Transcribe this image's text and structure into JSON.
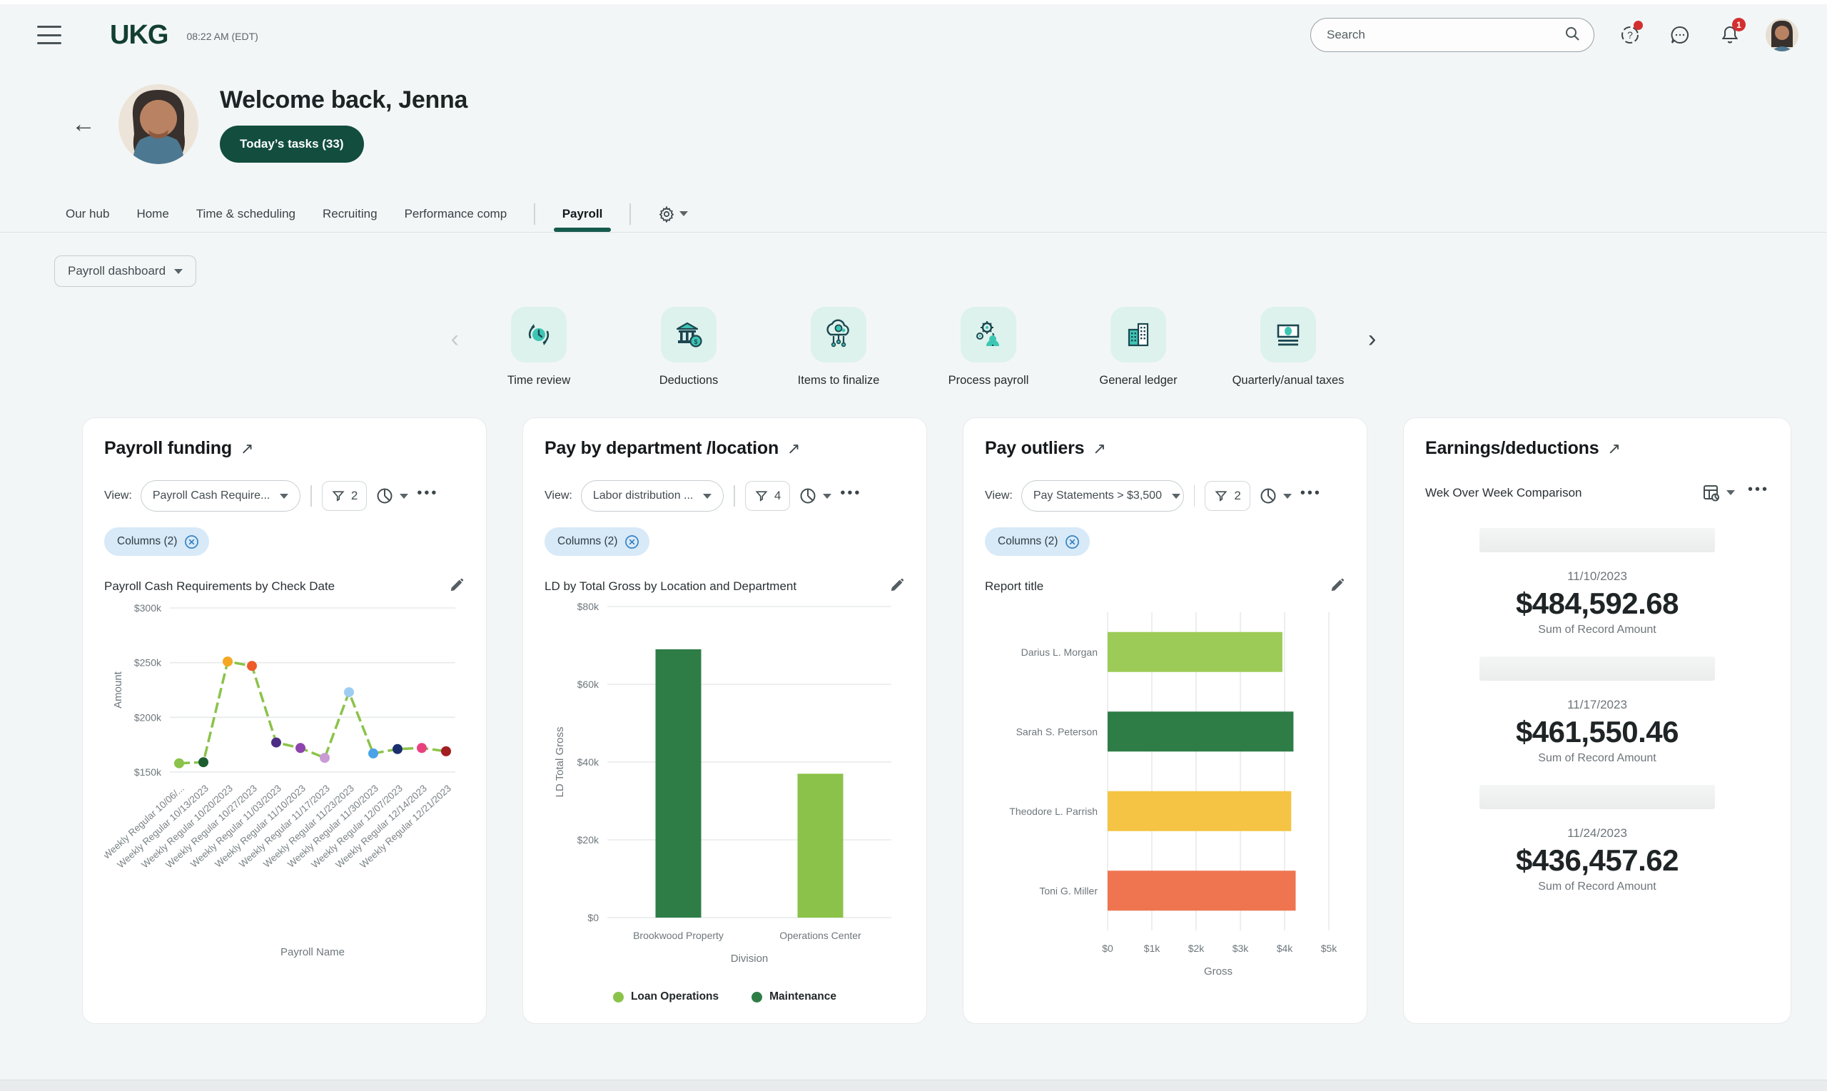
{
  "topbar": {
    "time": "08:22 AM (EDT)",
    "brand": "UKG",
    "search_placeholder": "Search",
    "notification_count": "1"
  },
  "welcome": {
    "title": "Welcome back, Jenna",
    "tasks_button": "Today’s tasks (33)"
  },
  "tabs": {
    "items": [
      {
        "label": "Our hub"
      },
      {
        "label": "Home"
      },
      {
        "label": "Time & scheduling"
      },
      {
        "label": "Recruiting"
      },
      {
        "label": "Performance comp"
      },
      {
        "label": "Payroll"
      }
    ],
    "active": "Payroll"
  },
  "dashboard_selector": {
    "label": "Payroll dashboard"
  },
  "carousel": {
    "items": [
      {
        "label": "Time review",
        "icon": "time-review-icon"
      },
      {
        "label": "Deductions",
        "icon": "bank-dollar-icon"
      },
      {
        "label": "Items to finalize",
        "icon": "cloud-gear-icon"
      },
      {
        "label": "Process payroll",
        "icon": "gears-person-icon"
      },
      {
        "label": "General ledger",
        "icon": "buildings-icon"
      },
      {
        "label": "Quarterly/anual taxes",
        "icon": "money-statement-icon"
      }
    ]
  },
  "cards": {
    "payroll_funding": {
      "title": "Payroll  funding",
      "view_label": "View:",
      "view_value": "Payroll Cash Require...",
      "filter_count": "2",
      "columns_chip": "Columns (2)",
      "report_title": "Payroll Cash Requirements by Check Date"
    },
    "pay_by_department": {
      "title": "Pay by department /location",
      "view_label": "View:",
      "view_value": "Labor distribution ...",
      "filter_count": "4",
      "columns_chip": "Columns (2)",
      "report_title": "LD by Total Gross by Location and Department"
    },
    "pay_outliers": {
      "title": "Pay outliers",
      "view_label": "View:",
      "view_value": "Pay Statements > $3,500",
      "filter_count": "2",
      "columns_chip": "Columns (2)",
      "report_title": "Report title"
    },
    "earnings_deductions": {
      "title": "Earnings/deductions",
      "subtitle": "Wek Over Week Comparison"
    }
  },
  "icons": {
    "hamburger": "menu",
    "search": "magnifier",
    "help": "question-circle",
    "chat": "speech-bubble",
    "bell": "notifications",
    "gear": "⚙",
    "external": "↗",
    "back": "←",
    "dots": "•••",
    "chevron_left": "‹",
    "chevron_right": "›"
  },
  "chart_data": [
    {
      "id": "payroll_funding",
      "type": "line",
      "title": "Payroll Cash Requirements by Check Date",
      "xlabel": "Payroll Name",
      "ylabel": "Amount",
      "ylim": [
        150000,
        300000
      ],
      "yticks": [
        {
          "v": 150000,
          "label": "$150k"
        },
        {
          "v": 200000,
          "label": "$200k"
        },
        {
          "v": 250000,
          "label": "$250k"
        },
        {
          "v": 300000,
          "label": "$300k"
        }
      ],
      "grid": true,
      "line_color": "#8bc34a",
      "line_dashed": true,
      "categories": [
        "Weekly Regular 10/06/...",
        "Weekly Regular 10/13/2023",
        "Weekly Regular 10/20/2023",
        "Weekly Regular 10/27/2023",
        "Weekly Regular 11/03/2023",
        "Weekly Regular 11/10/2023",
        "Weekly Regular 11/17/2023",
        "Weekly Regular 11/23/2023",
        "Weekly Regular 11/30/2023",
        "Weekly Regular 12/07/2023",
        "Weekly Regular 12/14/2023",
        "Weekly Regular 12/21/2023"
      ],
      "values": [
        158000,
        159000,
        251000,
        247000,
        177000,
        172000,
        163000,
        223000,
        167000,
        171000,
        172000,
        169000
      ],
      "point_colors": [
        "#8bc34a",
        "#1d5e30",
        "#f5a623",
        "#ef5a2a",
        "#4b2e83",
        "#8e44ad",
        "#c99bd4",
        "#9ecdf2",
        "#4aa3e8",
        "#1b2f6e",
        "#e8417f",
        "#a31e21"
      ]
    },
    {
      "id": "pay_by_department",
      "type": "bar",
      "title": "LD by Total Gross by Location and Department",
      "xlabel": "Division",
      "ylabel": "LD Total Gross",
      "ylim": [
        0,
        80000
      ],
      "yticks": [
        {
          "v": 0,
          "label": "$0"
        },
        {
          "v": 20000,
          "label": "$20k"
        },
        {
          "v": 40000,
          "label": "$40k"
        },
        {
          "v": 60000,
          "label": "$60k"
        },
        {
          "v": 80000,
          "label": "$80k"
        }
      ],
      "grid": true,
      "bars": [
        {
          "category": "Brookwood Property",
          "series": "Maintenance",
          "value": 69000,
          "color": "#2e7d46"
        },
        {
          "category": "Operations Center",
          "series": "Loan Operations",
          "value": 37000,
          "color": "#8bc34a"
        }
      ],
      "legend": [
        {
          "label": "Loan Operations",
          "color": "#8bc34a"
        },
        {
          "label": "Maintenance",
          "color": "#2e7d46"
        }
      ],
      "legend_position": "bottom"
    },
    {
      "id": "pay_outliers",
      "type": "horizontal-bar",
      "title": "Report title",
      "xlabel": "Gross",
      "xlim": [
        0,
        5000
      ],
      "xticks": [
        {
          "v": 0,
          "label": "$0"
        },
        {
          "v": 1000,
          "label": "$1k"
        },
        {
          "v": 2000,
          "label": "$2k"
        },
        {
          "v": 3000,
          "label": "$3k"
        },
        {
          "v": 4000,
          "label": "$4k"
        },
        {
          "v": 5000,
          "label": "$5k"
        }
      ],
      "grid": true,
      "bars": [
        {
          "category": "Darius L. Morgan",
          "value": 3950,
          "color": "#9ccb57"
        },
        {
          "category": "Sarah S. Peterson",
          "value": 4200,
          "color": "#2e7d46"
        },
        {
          "category": "Theodore L. Parrish",
          "value": 4150,
          "color": "#f5c444"
        },
        {
          "category": "Toni G. Miller",
          "value": 4250,
          "color": "#ef7450"
        }
      ]
    },
    {
      "id": "earnings_deductions",
      "type": "table",
      "title": "Wek Over Week Comparison",
      "rows": [
        {
          "date": "11/10/2023",
          "amount": "$484,592.68",
          "caption": "Sum of Record Amount"
        },
        {
          "date": "11/17/2023",
          "amount": "$461,550.46",
          "caption": "Sum of Record Amount"
        },
        {
          "date": "11/24/2023",
          "amount": "$436,457.62",
          "caption": "Sum of Record Amount"
        }
      ]
    }
  ]
}
